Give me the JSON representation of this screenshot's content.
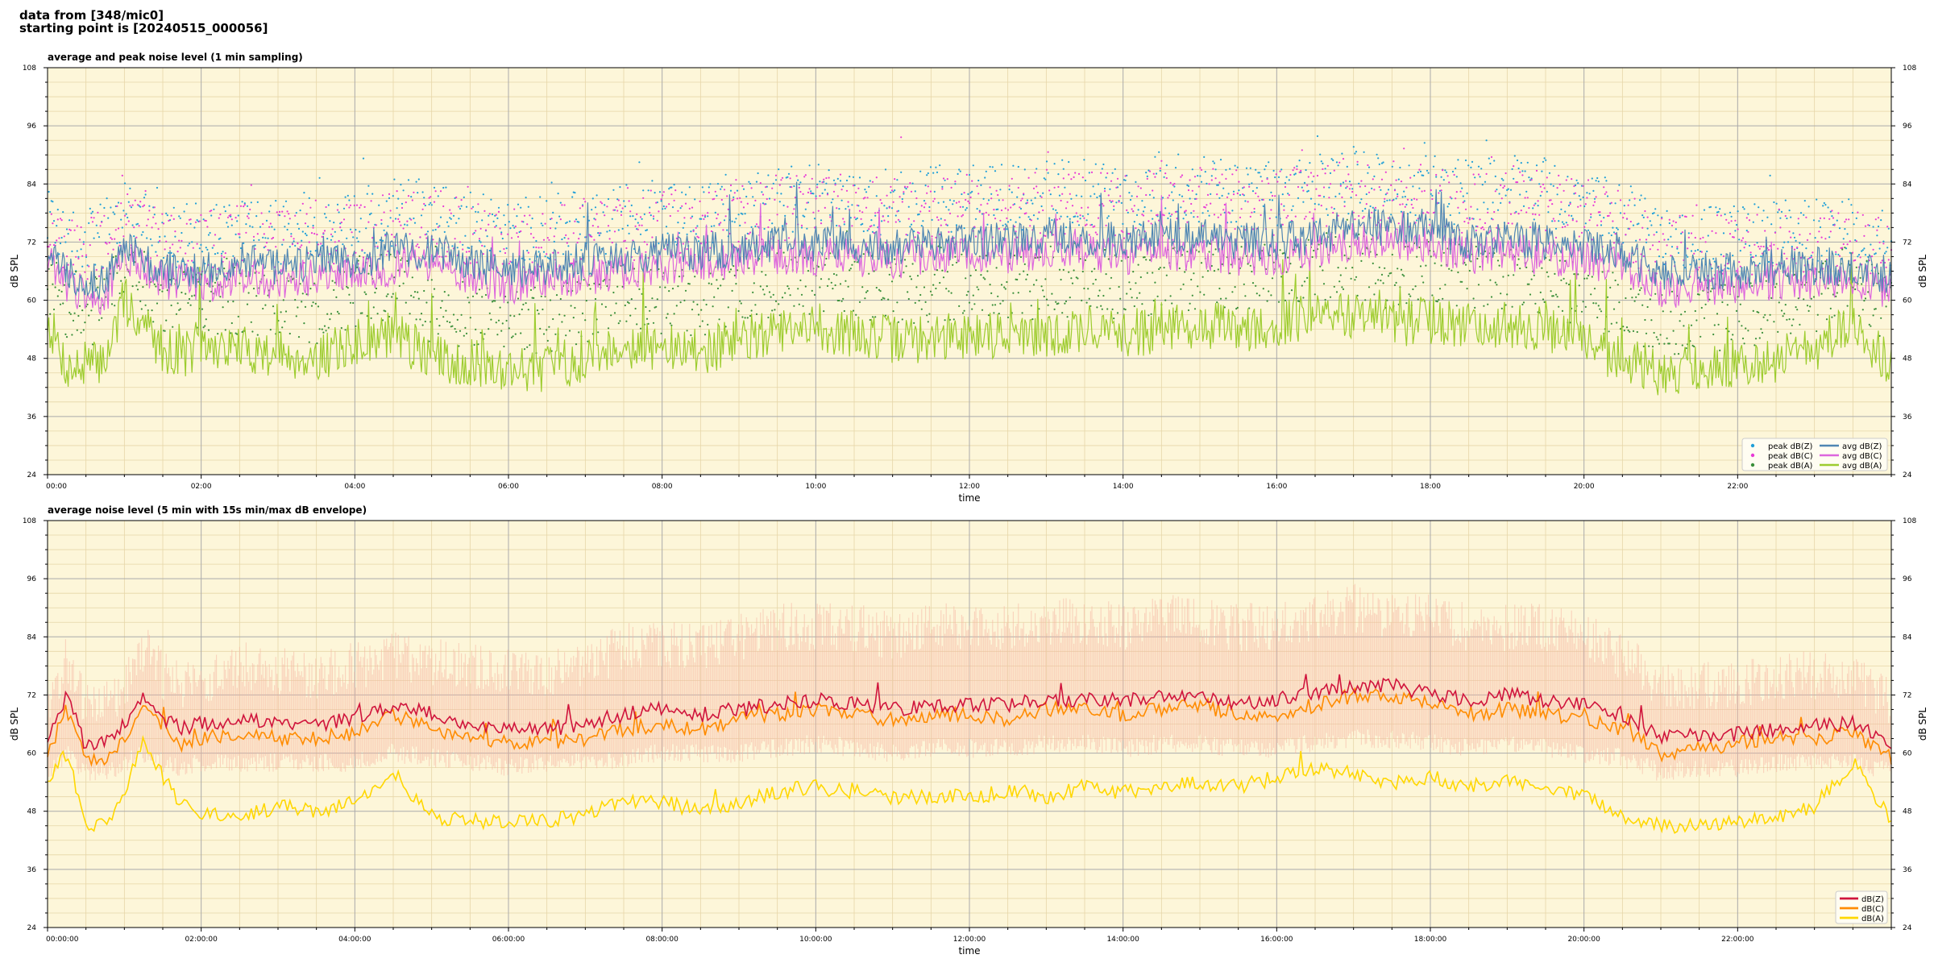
{
  "header": {
    "line1": "data from [348/mic0]",
    "line2": "starting point is [20240515_000056]"
  },
  "colors": {
    "background": "#fdf6d9",
    "grid_major": "#aaaaaa",
    "grid_minor": "#e6d6a8",
    "z_top": "#4f86b3",
    "c_top": "#dd66dd",
    "a_top": "#9dcc2e",
    "peak_z": "#1f9fd8",
    "peak_c": "#e83ad6",
    "peak_a": "#3a8f3a",
    "z_bottom": "#d0143c",
    "c_bottom": "#ff8c00",
    "a_bottom": "#ffd700",
    "envelope": "#f5b5a0"
  },
  "chart_data": [
    {
      "type": "line",
      "title": "average and peak noise level (1 min sampling)",
      "xlabel": "time",
      "ylabel": "dB SPL",
      "ylabel_right": "dB SPL",
      "xlim_hours": [
        0,
        24
      ],
      "ylim": [
        24,
        108
      ],
      "yticks": [
        24,
        36,
        48,
        60,
        72,
        84,
        96,
        108
      ],
      "xtick_labels": [
        "00:00",
        "02:00",
        "04:00",
        "06:00",
        "08:00",
        "10:00",
        "12:00",
        "14:00",
        "16:00",
        "18:00",
        "20:00",
        "22:00"
      ],
      "grid": true,
      "legend_position": "lower-right",
      "legend": [
        {
          "label": "peak dB(Z)",
          "kind": "dot",
          "color_key": "peak_z"
        },
        {
          "label": "avg dB(Z)",
          "kind": "line",
          "color_key": "z_top"
        },
        {
          "label": "peak dB(C)",
          "kind": "dot",
          "color_key": "peak_c"
        },
        {
          "label": "avg dB(C)",
          "kind": "line",
          "color_key": "c_top"
        },
        {
          "label": "peak dB(A)",
          "kind": "dot",
          "color_key": "peak_a"
        },
        {
          "label": "avg dB(A)",
          "kind": "line",
          "color_key": "a_top"
        }
      ],
      "x_hours": [
        0,
        0.25,
        0.5,
        0.75,
        1,
        1.25,
        1.5,
        1.75,
        2,
        2.5,
        3,
        3.5,
        4,
        4.5,
        5,
        5.5,
        6,
        6.5,
        7,
        7.5,
        8,
        8.5,
        9,
        9.5,
        10,
        10.5,
        11,
        11.5,
        12,
        12.5,
        13,
        13.5,
        14,
        14.5,
        15,
        15.5,
        16,
        16.5,
        17,
        17.5,
        18,
        18.5,
        19,
        19.5,
        20,
        20.5,
        21,
        21.5,
        22,
        22.5,
        23,
        23.5,
        24
      ],
      "series": [
        {
          "name": "avg dB(Z)",
          "color_key": "z_top",
          "values": [
            70,
            66,
            64,
            64,
            71,
            69,
            66,
            66,
            66,
            68,
            67,
            68,
            68,
            70,
            70,
            68,
            66,
            67,
            68,
            69,
            70,
            70,
            71,
            72,
            72,
            72,
            71,
            72,
            72,
            72,
            73,
            73,
            72,
            73,
            73,
            72,
            72,
            73,
            75,
            75,
            74,
            72,
            73,
            72,
            71,
            70,
            65,
            66,
            66,
            67,
            67,
            67,
            65
          ]
        },
        {
          "name": "avg dB(C)",
          "color_key": "c_top",
          "values": [
            68,
            63,
            61,
            61,
            69,
            67,
            64,
            64,
            63,
            65,
            64,
            65,
            65,
            67,
            68,
            65,
            63,
            64,
            65,
            66,
            67,
            67,
            68,
            69,
            69,
            69,
            68,
            69,
            69,
            69,
            70,
            70,
            69,
            70,
            70,
            69,
            69,
            70,
            72,
            72,
            71,
            69,
            70,
            69,
            68,
            67,
            62,
            63,
            63,
            64,
            64,
            64,
            62
          ]
        },
        {
          "name": "avg dB(A)",
          "color_key": "a_top",
          "values": [
            56,
            46,
            46,
            48,
            60,
            55,
            50,
            49,
            50,
            50,
            49,
            48,
            51,
            53,
            48,
            47,
            46,
            46,
            48,
            51,
            50,
            49,
            52,
            53,
            54,
            53,
            52,
            52,
            53,
            53,
            52,
            54,
            53,
            54,
            55,
            54,
            55,
            57,
            57,
            55,
            56,
            55,
            55,
            54,
            51,
            48,
            45,
            46,
            47,
            48,
            50,
            55,
            47
          ]
        },
        {
          "name": "peak dB(Z)",
          "color_key": "peak_z",
          "values": [
            76,
            72,
            72,
            74,
            78,
            76,
            73,
            73,
            73,
            75,
            74,
            76,
            76,
            78,
            78,
            76,
            74,
            75,
            76,
            77,
            78,
            78,
            80,
            81,
            81,
            81,
            80,
            81,
            81,
            81,
            82,
            82,
            81,
            84,
            83,
            82,
            82,
            83,
            85,
            84,
            83,
            82,
            83,
            82,
            81,
            78,
            72,
            73,
            73,
            74,
            74,
            74,
            72
          ]
        },
        {
          "name": "peak dB(C)",
          "color_key": "peak_c",
          "values": [
            74,
            70,
            70,
            72,
            76,
            74,
            71,
            71,
            71,
            73,
            72,
            74,
            74,
            76,
            76,
            74,
            72,
            73,
            74,
            75,
            76,
            76,
            78,
            79,
            79,
            79,
            78,
            79,
            79,
            79,
            80,
            80,
            79,
            82,
            81,
            80,
            80,
            81,
            83,
            82,
            81,
            80,
            81,
            80,
            79,
            76,
            70,
            71,
            71,
            72,
            72,
            72,
            70
          ]
        },
        {
          "name": "peak dB(A)",
          "color_key": "peak_a",
          "values": [
            65,
            57,
            57,
            59,
            68,
            64,
            60,
            59,
            60,
            60,
            59,
            58,
            61,
            63,
            58,
            57,
            56,
            56,
            58,
            61,
            60,
            59,
            62,
            63,
            64,
            63,
            62,
            62,
            63,
            63,
            62,
            64,
            63,
            64,
            65,
            64,
            65,
            67,
            67,
            65,
            66,
            65,
            65,
            64,
            61,
            58,
            55,
            56,
            57,
            58,
            60,
            65,
            57
          ]
        }
      ]
    },
    {
      "type": "line",
      "title": "average noise level (5 min with 15s min/max dB envelope)",
      "xlabel": "time",
      "ylabel": "dB SPL",
      "ylabel_right": "dB SPL",
      "xlim_hours": [
        0,
        24
      ],
      "ylim": [
        24,
        108
      ],
      "yticks": [
        24,
        36,
        48,
        60,
        72,
        84,
        96,
        108
      ],
      "xtick_labels": [
        "00:00:00",
        "02:00:00",
        "04:00:00",
        "06:00:00",
        "08:00:00",
        "10:00:00",
        "12:00:00",
        "14:00:00",
        "16:00:00",
        "18:00:00",
        "20:00:00",
        "22:00:00"
      ],
      "grid": true,
      "legend_position": "lower-right",
      "legend": [
        {
          "label": "dB(Z)",
          "kind": "line",
          "color_key": "z_bottom"
        },
        {
          "label": "dB(C)",
          "kind": "line",
          "color_key": "c_bottom"
        },
        {
          "label": "dB(A)",
          "kind": "line",
          "color_key": "a_bottom"
        }
      ],
      "x_hours": [
        0,
        0.25,
        0.5,
        0.75,
        1,
        1.25,
        1.5,
        1.75,
        2,
        2.5,
        3,
        3.5,
        4,
        4.5,
        5,
        5.5,
        6,
        6.5,
        7,
        7.5,
        8,
        8.5,
        9,
        9.5,
        10,
        10.5,
        11,
        11.5,
        12,
        12.5,
        13,
        13.5,
        14,
        14.5,
        15,
        15.5,
        16,
        16.5,
        17,
        17.5,
        18,
        18.5,
        19,
        19.5,
        20,
        20.5,
        21,
        21.5,
        22,
        22.5,
        23,
        23.5,
        24
      ],
      "series": [
        {
          "name": "dB(Z)",
          "color_key": "z_bottom",
          "values": [
            63,
            72,
            61,
            62,
            66,
            72,
            67,
            65,
            66,
            67,
            66,
            66,
            67,
            70,
            68,
            66,
            65,
            65,
            66,
            68,
            69,
            68,
            69,
            70,
            71,
            70,
            69,
            70,
            70,
            70,
            71,
            71,
            71,
            72,
            72,
            70,
            71,
            72,
            74,
            74,
            72,
            71,
            72,
            71,
            70,
            68,
            63,
            64,
            64,
            65,
            66,
            66,
            62
          ]
        },
        {
          "name": "dB(C)",
          "color_key": "c_bottom",
          "values": [
            60,
            69,
            59,
            59,
            63,
            71,
            65,
            62,
            63,
            64,
            63,
            63,
            64,
            68,
            65,
            63,
            62,
            62,
            63,
            65,
            66,
            65,
            67,
            68,
            69,
            68,
            67,
            68,
            68,
            67,
            69,
            69,
            68,
            69,
            70,
            68,
            68,
            70,
            72,
            72,
            70,
            68,
            69,
            68,
            67,
            65,
            60,
            61,
            62,
            63,
            63,
            64,
            59
          ]
        },
        {
          "name": "dB(A)",
          "color_key": "a_bottom",
          "values": [
            55,
            60,
            45,
            45,
            52,
            63,
            55,
            49,
            48,
            47,
            49,
            48,
            50,
            56,
            47,
            46,
            46,
            46,
            47,
            50,
            50,
            48,
            50,
            52,
            53,
            52,
            51,
            51,
            51,
            52,
            51,
            53,
            52,
            53,
            54,
            53,
            55,
            57,
            56,
            54,
            55,
            53,
            54,
            53,
            51,
            47,
            45,
            45,
            46,
            47,
            49,
            58,
            46
          ]
        },
        {
          "name": "max envelope",
          "color_key": "envelope",
          "values": [
            68,
            80,
            70,
            70,
            74,
            82,
            76,
            74,
            75,
            78,
            77,
            76,
            78,
            80,
            79,
            78,
            77,
            76,
            78,
            82,
            82,
            82,
            84,
            86,
            86,
            86,
            84,
            86,
            86,
            86,
            87,
            87,
            86,
            88,
            87,
            86,
            86,
            88,
            90,
            88,
            88,
            86,
            86,
            86,
            84,
            80,
            74,
            74,
            74,
            76,
            76,
            76,
            70
          ]
        },
        {
          "name": "min envelope",
          "color_key": "envelope",
          "values": [
            56,
            60,
            56,
            56,
            58,
            60,
            58,
            57,
            58,
            58,
            58,
            58,
            58,
            60,
            59,
            58,
            57,
            58,
            58,
            59,
            60,
            60,
            60,
            61,
            62,
            61,
            60,
            61,
            61,
            61,
            62,
            62,
            61,
            62,
            62,
            61,
            61,
            62,
            63,
            63,
            62,
            61,
            62,
            61,
            60,
            59,
            56,
            57,
            57,
            58,
            58,
            58,
            56
          ]
        }
      ]
    }
  ]
}
